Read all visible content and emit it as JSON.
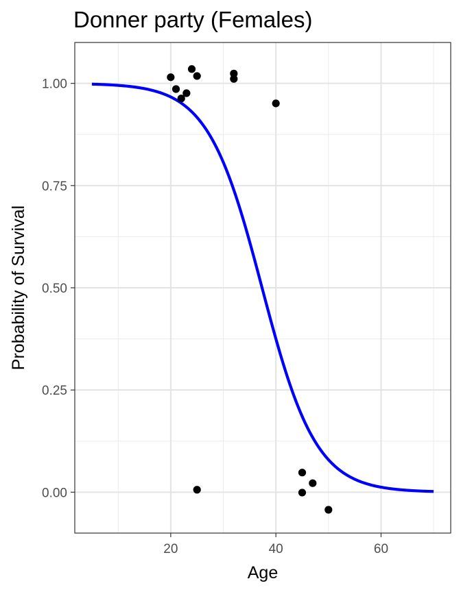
{
  "chart_data": {
    "type": "scatter",
    "title": "Donner party (Females)",
    "xlabel": "Age",
    "ylabel": "Probability of Survival",
    "xlim": [
      1.75,
      73.25
    ],
    "ylim": [
      -0.1,
      1.1
    ],
    "x_ticks": [
      20,
      40,
      60
    ],
    "x_tick_labels": [
      "20",
      "40",
      "60"
    ],
    "x_minor_ticks": [
      10,
      30,
      50,
      70
    ],
    "y_ticks": [
      0,
      0.25,
      0.5,
      0.75,
      1
    ],
    "y_tick_labels": [
      "0.00",
      "0.25",
      "0.50",
      "0.75",
      "1.00"
    ],
    "y_minor_ticks": [
      0.125,
      0.375,
      0.625,
      0.875
    ],
    "grid": true,
    "theme": "bw",
    "points": {
      "color": "#000000",
      "x": [
        20,
        21,
        22,
        23,
        24,
        25,
        32,
        32,
        40,
        25,
        45,
        45,
        47,
        50
      ],
      "y": [
        1.015,
        0.986,
        0.963,
        0.976,
        1.035,
        1.018,
        1.024,
        1.011,
        0.951,
        0.006,
        0.048,
        -0.001,
        0.022,
        -0.043
      ]
    },
    "fit_line": {
      "type": "logistic",
      "color": "#0000ff",
      "x_range": [
        5,
        70
      ],
      "intercept": 7.25,
      "slope": -0.194
    }
  }
}
